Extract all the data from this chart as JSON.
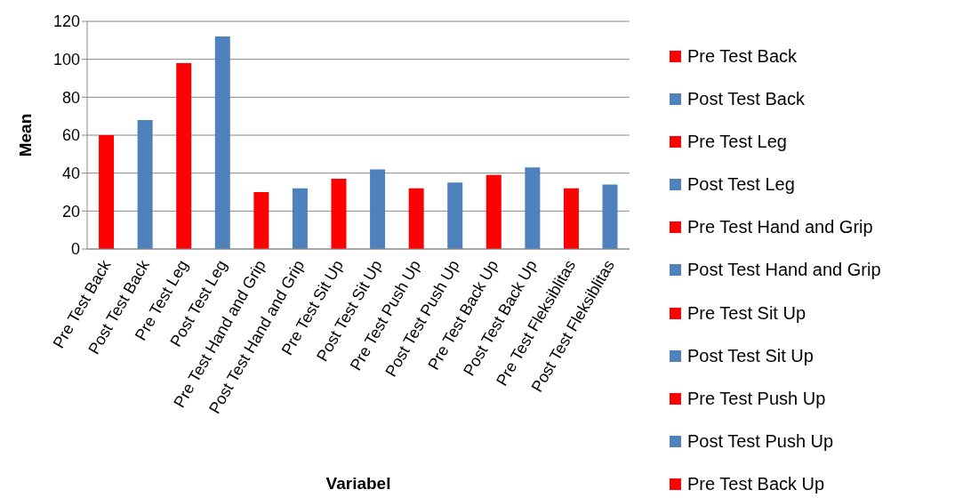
{
  "chart_data": {
    "type": "bar",
    "xlabel": "Variabel",
    "ylabel": "Mean",
    "stacked": true,
    "grid": "y",
    "legend": "right",
    "categories": [
      "Pre Test Back",
      "Post Test Back",
      "Pre Test Leg",
      "Post Test Leg",
      "Pre Test Hand and Grip",
      "Post Test Hand and Grip",
      "Pre Test Sit Up",
      "Post Test Sit Up",
      "Pre Test Push Up",
      "Post Test Push Up",
      "Pre Test Back Up",
      "Post Test Back Up",
      "Pre Test Fleksiblitas",
      "Post Test Fleksiblitas"
    ],
    "ylim": [
      0,
      120
    ],
    "yticks": [
      0,
      20,
      40,
      60,
      80,
      100,
      120
    ],
    "series": [
      {
        "name": "Pre Test Back",
        "color": "#ff0000",
        "values": [
          60,
          null,
          null,
          null,
          null,
          null,
          null,
          null,
          null,
          null,
          null,
          null,
          null,
          null
        ]
      },
      {
        "name": "Post Test Back",
        "color": "#4f81bd",
        "values": [
          null,
          68,
          null,
          null,
          null,
          null,
          null,
          null,
          null,
          null,
          null,
          null,
          null,
          null
        ]
      },
      {
        "name": "Pre Test Leg",
        "color": "#ff0000",
        "values": [
          null,
          null,
          98,
          null,
          null,
          null,
          null,
          null,
          null,
          null,
          null,
          null,
          null,
          null
        ]
      },
      {
        "name": "Post Test Leg",
        "color": "#4f81bd",
        "values": [
          null,
          null,
          null,
          112,
          null,
          null,
          null,
          null,
          null,
          null,
          null,
          null,
          null,
          null
        ]
      },
      {
        "name": "Pre Test Hand and Grip",
        "color": "#ff0000",
        "values": [
          null,
          null,
          null,
          null,
          30,
          null,
          null,
          null,
          null,
          null,
          null,
          null,
          null,
          null
        ]
      },
      {
        "name": "Post Test Hand and Grip",
        "color": "#4f81bd",
        "values": [
          null,
          null,
          null,
          null,
          null,
          32,
          null,
          null,
          null,
          null,
          null,
          null,
          null,
          null
        ]
      },
      {
        "name": "Pre Test Sit Up",
        "color": "#ff0000",
        "values": [
          null,
          null,
          null,
          null,
          null,
          null,
          37,
          null,
          null,
          null,
          null,
          null,
          null,
          null
        ]
      },
      {
        "name": "Post Test Sit Up",
        "color": "#4f81bd",
        "values": [
          null,
          null,
          null,
          null,
          null,
          null,
          null,
          42,
          null,
          null,
          null,
          null,
          null,
          null
        ]
      },
      {
        "name": "Pre Test Push Up",
        "color": "#ff0000",
        "values": [
          null,
          null,
          null,
          null,
          null,
          null,
          null,
          null,
          32,
          null,
          null,
          null,
          null,
          null
        ]
      },
      {
        "name": "Post Test Push Up",
        "color": "#4f81bd",
        "values": [
          null,
          null,
          null,
          null,
          null,
          null,
          null,
          null,
          null,
          35,
          null,
          null,
          null,
          null
        ]
      },
      {
        "name": "Pre Test Back Up",
        "color": "#ff0000",
        "values": [
          null,
          null,
          null,
          null,
          null,
          null,
          null,
          null,
          null,
          null,
          39,
          null,
          null,
          null
        ]
      },
      {
        "color": "#4f81bd",
        "values": [
          null,
          null,
          null,
          null,
          null,
          null,
          null,
          null,
          null,
          null,
          null,
          43,
          null,
          null
        ]
      },
      {
        "color": "#ff0000",
        "values": [
          null,
          null,
          null,
          null,
          null,
          null,
          null,
          null,
          null,
          null,
          null,
          null,
          32,
          null
        ]
      },
      {
        "color": "#4f81bd",
        "values": [
          null,
          null,
          null,
          null,
          null,
          null,
          null,
          null,
          null,
          null,
          null,
          null,
          null,
          34
        ]
      }
    ]
  }
}
